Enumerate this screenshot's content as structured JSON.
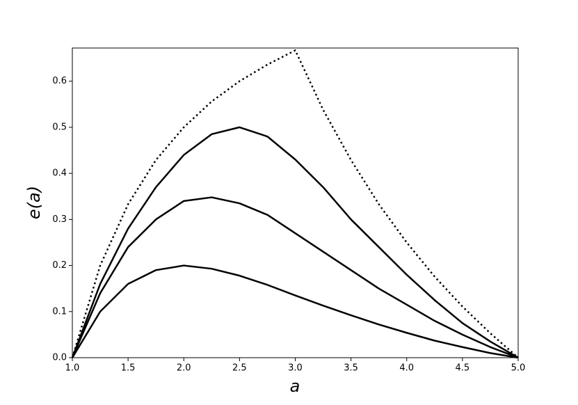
{
  "chart_data": {
    "type": "line",
    "x_label": "a",
    "y_label": "e(a)",
    "x": [
      1,
      1.25,
      1.5,
      1.75,
      2,
      2.25,
      2.5,
      2.75,
      3,
      3.25,
      3.5,
      3.75,
      4,
      4.25,
      4.5,
      4.75,
      5
    ],
    "series": [
      {
        "color": "#000000",
        "dash": "dotted",
        "values": [
          0,
          0.2,
          0.333,
          0.429,
          0.5,
          0.556,
          0.6,
          0.636,
          0.667,
          0.538,
          0.429,
          0.333,
          0.25,
          0.176,
          0.111,
          0.053,
          0
        ]
      },
      {
        "color": "#000000",
        "dash": "solid",
        "values": [
          0,
          0.16,
          0.28,
          0.37,
          0.44,
          0.485,
          0.5,
          0.48,
          0.43,
          0.37,
          0.3,
          0.24,
          0.18,
          0.125,
          0.075,
          0.035,
          0
        ]
      },
      {
        "color": "#000000",
        "dash": "solid",
        "values": [
          0,
          0.14,
          0.24,
          0.3,
          0.34,
          0.348,
          0.335,
          0.31,
          0.27,
          0.23,
          0.19,
          0.15,
          0.115,
          0.08,
          0.05,
          0.023,
          0
        ]
      },
      {
        "color": "#000000",
        "dash": "solid",
        "values": [
          0,
          0.1,
          0.16,
          0.19,
          0.2,
          0.193,
          0.178,
          0.158,
          0.135,
          0.113,
          0.092,
          0.072,
          0.054,
          0.037,
          0.023,
          0.01,
          0
        ]
      }
    ],
    "xlim": [
      1,
      5
    ],
    "xticks": [
      {
        "value": 1,
        "label": "1.0"
      },
      {
        "value": 1.5,
        "label": "1.5"
      },
      {
        "value": 2,
        "label": "2.0"
      },
      {
        "value": 2.5,
        "label": "2.5"
      },
      {
        "value": 3,
        "label": "3.0"
      },
      {
        "value": 3.5,
        "label": "3.5"
      },
      {
        "value": 4,
        "label": "4.0"
      },
      {
        "value": 4.5,
        "label": "4.5"
      },
      {
        "value": 5,
        "label": "5.0"
      }
    ],
    "ylim": [
      0,
      0.672
    ],
    "yticks": [
      {
        "value": 0,
        "label": "0.0"
      },
      0.1,
      0.2,
      0.3,
      0.4,
      0.5,
      0.6
    ],
    "grid": false
  }
}
